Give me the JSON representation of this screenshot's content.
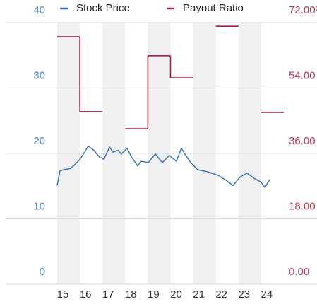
{
  "chart_data": {
    "type": "line",
    "xticks": [
      15,
      16,
      17,
      18,
      19,
      20,
      21,
      22,
      23,
      24
    ],
    "xlim": [
      15,
      25
    ],
    "ylim": [
      0,
      40
    ],
    "yticks": [
      0,
      10,
      20,
      30,
      40
    ],
    "y2lim": [
      0,
      72
    ],
    "y2ticks": [
      {
        "value": 0,
        "label": "0.00"
      },
      {
        "value": 18,
        "label": "18.00"
      },
      {
        "value": 36,
        "label": "36.00"
      },
      {
        "value": 54,
        "label": "54.00"
      },
      {
        "value": 72,
        "label": "72.00%"
      }
    ],
    "grid": true,
    "series": [
      {
        "name": "Stock Price",
        "color": "#2f6fb3",
        "x": [
          15.0,
          15.12,
          15.28,
          15.59,
          15.81,
          16.0,
          16.21,
          16.37,
          16.62,
          16.84,
          17.06,
          17.31,
          17.46,
          17.68,
          17.83,
          18.08,
          18.27,
          18.55,
          18.71,
          19.02,
          19.33,
          19.64,
          19.95,
          20.26,
          20.48,
          20.67,
          20.89,
          21.2,
          21.51,
          21.82,
          22.13,
          22.45,
          22.76,
          23.07,
          23.38,
          23.69,
          24.0,
          24.16,
          24.38
        ],
        "values": [
          15.1,
          17.3,
          17.5,
          17.7,
          18.4,
          19.1,
          20.2,
          21.1,
          20.5,
          19.5,
          19.1,
          21.0,
          20.2,
          20.5,
          19.9,
          20.8,
          19.5,
          18.1,
          18.8,
          18.6,
          19.9,
          18.6,
          19.7,
          18.8,
          20.8,
          19.7,
          18.6,
          17.5,
          17.3,
          17.0,
          16.6,
          15.9,
          15.1,
          16.4,
          17.0,
          16.2,
          15.6,
          14.8,
          16.0
        ]
      },
      {
        "name": "Payout Ratio",
        "color": "#a3213a",
        "axis": "y2",
        "step": true,
        "x": [
          15,
          16,
          17,
          18,
          19,
          20,
          21,
          22,
          23,
          24
        ],
        "values": [
          68.1,
          47.5,
          null,
          42.8,
          62.9,
          56.8,
          null,
          71.0,
          null,
          47.3
        ]
      }
    ]
  }
}
